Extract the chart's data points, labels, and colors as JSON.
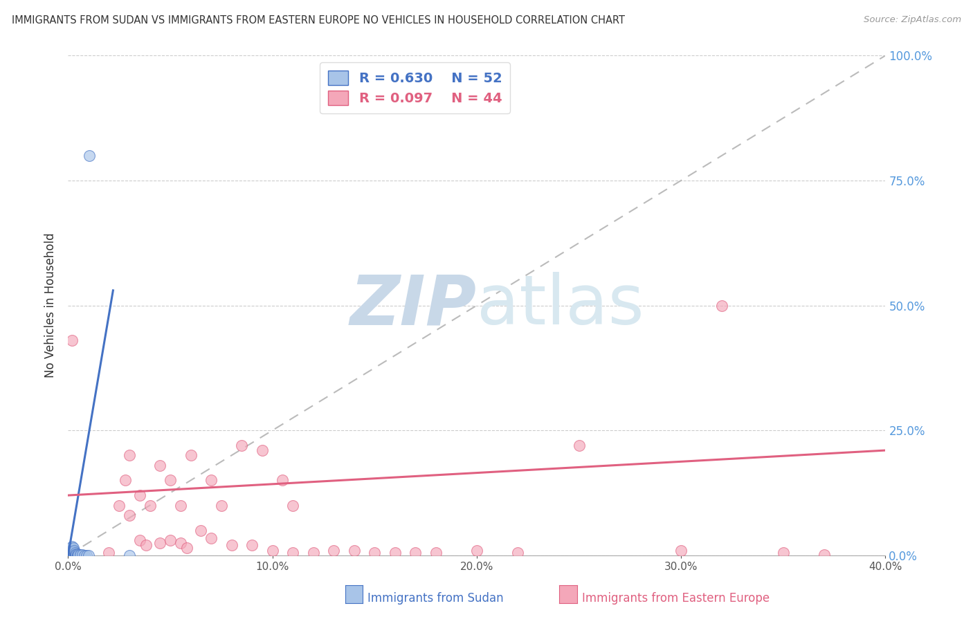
{
  "title": "IMMIGRANTS FROM SUDAN VS IMMIGRANTS FROM EASTERN EUROPE NO VEHICLES IN HOUSEHOLD CORRELATION CHART",
  "source": "Source: ZipAtlas.com",
  "ylabel": "No Vehicles in Household",
  "xlabel_sudan": "Immigrants from Sudan",
  "xlabel_eastern": "Immigrants from Eastern Europe",
  "xlim": [
    0.0,
    0.4
  ],
  "ylim": [
    0.0,
    1.0
  ],
  "xticks": [
    0.0,
    0.1,
    0.2,
    0.3,
    0.4
  ],
  "xtick_labels": [
    "0.0%",
    "10.0%",
    "20.0%",
    "30.0%",
    "40.0%"
  ],
  "yticks": [
    0.0,
    0.25,
    0.5,
    0.75,
    1.0
  ],
  "ytick_labels_right": [
    "0.0%",
    "25.0%",
    "50.0%",
    "75.0%",
    "100.0%"
  ],
  "R_sudan": 0.63,
  "N_sudan": 52,
  "R_eastern": 0.097,
  "N_eastern": 44,
  "legend_sudan_color": "#a8c4e8",
  "legend_eastern_color": "#f4a7b9",
  "sudan_line_color": "#4472c4",
  "eastern_line_color": "#e06080",
  "watermark_zip": "ZIP",
  "watermark_atlas": "atlas",
  "watermark_color": "#c8d8e8",
  "grid_color": "#cccccc",
  "title_color": "#333333",
  "right_axis_color": "#5599dd",
  "sudan_scatter": [
    [
      0.0005,
      0.0
    ],
    [
      0.0005,
      0.001
    ],
    [
      0.0008,
      0.0
    ],
    [
      0.001,
      0.0
    ],
    [
      0.001,
      0.002
    ],
    [
      0.001,
      0.005
    ],
    [
      0.0012,
      0.001
    ],
    [
      0.0012,
      0.003
    ],
    [
      0.0015,
      0.0
    ],
    [
      0.0015,
      0.002
    ],
    [
      0.0015,
      0.005
    ],
    [
      0.0015,
      0.007
    ],
    [
      0.0015,
      0.01
    ],
    [
      0.0015,
      0.015
    ],
    [
      0.0018,
      0.0
    ],
    [
      0.0018,
      0.003
    ],
    [
      0.002,
      0.0
    ],
    [
      0.002,
      0.001
    ],
    [
      0.002,
      0.003
    ],
    [
      0.002,
      0.005
    ],
    [
      0.002,
      0.007
    ],
    [
      0.002,
      0.012
    ],
    [
      0.002,
      0.018
    ],
    [
      0.0022,
      0.0
    ],
    [
      0.0025,
      0.0
    ],
    [
      0.0025,
      0.002
    ],
    [
      0.0025,
      0.005
    ],
    [
      0.0025,
      0.008
    ],
    [
      0.0025,
      0.015
    ],
    [
      0.0028,
      0.0
    ],
    [
      0.003,
      0.001
    ],
    [
      0.003,
      0.003
    ],
    [
      0.003,
      0.006
    ],
    [
      0.003,
      0.01
    ],
    [
      0.0035,
      0.0
    ],
    [
      0.0035,
      0.002
    ],
    [
      0.0035,
      0.005
    ],
    [
      0.004,
      0.0
    ],
    [
      0.004,
      0.001
    ],
    [
      0.004,
      0.003
    ],
    [
      0.0045,
      0.0
    ],
    [
      0.0045,
      0.002
    ],
    [
      0.005,
      0.0
    ],
    [
      0.005,
      0.0015
    ],
    [
      0.006,
      0.0
    ],
    [
      0.006,
      0.001
    ],
    [
      0.007,
      0.001
    ],
    [
      0.008,
      0.0
    ],
    [
      0.009,
      0.0
    ],
    [
      0.01,
      0.0
    ],
    [
      0.0105,
      0.8
    ],
    [
      0.03,
      0.0
    ]
  ],
  "eastern_scatter": [
    [
      0.002,
      0.43
    ],
    [
      0.02,
      0.005
    ],
    [
      0.025,
      0.1
    ],
    [
      0.028,
      0.15
    ],
    [
      0.03,
      0.08
    ],
    [
      0.03,
      0.2
    ],
    [
      0.035,
      0.03
    ],
    [
      0.035,
      0.12
    ],
    [
      0.038,
      0.02
    ],
    [
      0.04,
      0.1
    ],
    [
      0.045,
      0.025
    ],
    [
      0.045,
      0.18
    ],
    [
      0.05,
      0.03
    ],
    [
      0.05,
      0.15
    ],
    [
      0.055,
      0.025
    ],
    [
      0.055,
      0.1
    ],
    [
      0.058,
      0.015
    ],
    [
      0.06,
      0.2
    ],
    [
      0.065,
      0.05
    ],
    [
      0.07,
      0.035
    ],
    [
      0.07,
      0.15
    ],
    [
      0.075,
      0.1
    ],
    [
      0.08,
      0.02
    ],
    [
      0.085,
      0.22
    ],
    [
      0.09,
      0.02
    ],
    [
      0.095,
      0.21
    ],
    [
      0.1,
      0.01
    ],
    [
      0.105,
      0.15
    ],
    [
      0.11,
      0.005
    ],
    [
      0.11,
      0.1
    ],
    [
      0.12,
      0.005
    ],
    [
      0.13,
      0.01
    ],
    [
      0.14,
      0.01
    ],
    [
      0.15,
      0.005
    ],
    [
      0.16,
      0.005
    ],
    [
      0.17,
      0.005
    ],
    [
      0.2,
      0.01
    ],
    [
      0.22,
      0.005
    ],
    [
      0.25,
      0.22
    ],
    [
      0.3,
      0.01
    ],
    [
      0.32,
      0.5
    ],
    [
      0.35,
      0.005
    ],
    [
      0.37,
      0.001
    ],
    [
      0.18,
      0.005
    ]
  ],
  "sudan_line_x": [
    0.0,
    0.022
  ],
  "sudan_line_y": [
    0.0,
    0.53
  ],
  "eastern_line_x": [
    0.0,
    0.4
  ],
  "eastern_line_y": [
    0.12,
    0.21
  ],
  "diag_line_x": [
    0.0,
    0.4
  ],
  "diag_line_y": [
    0.0,
    1.0
  ]
}
